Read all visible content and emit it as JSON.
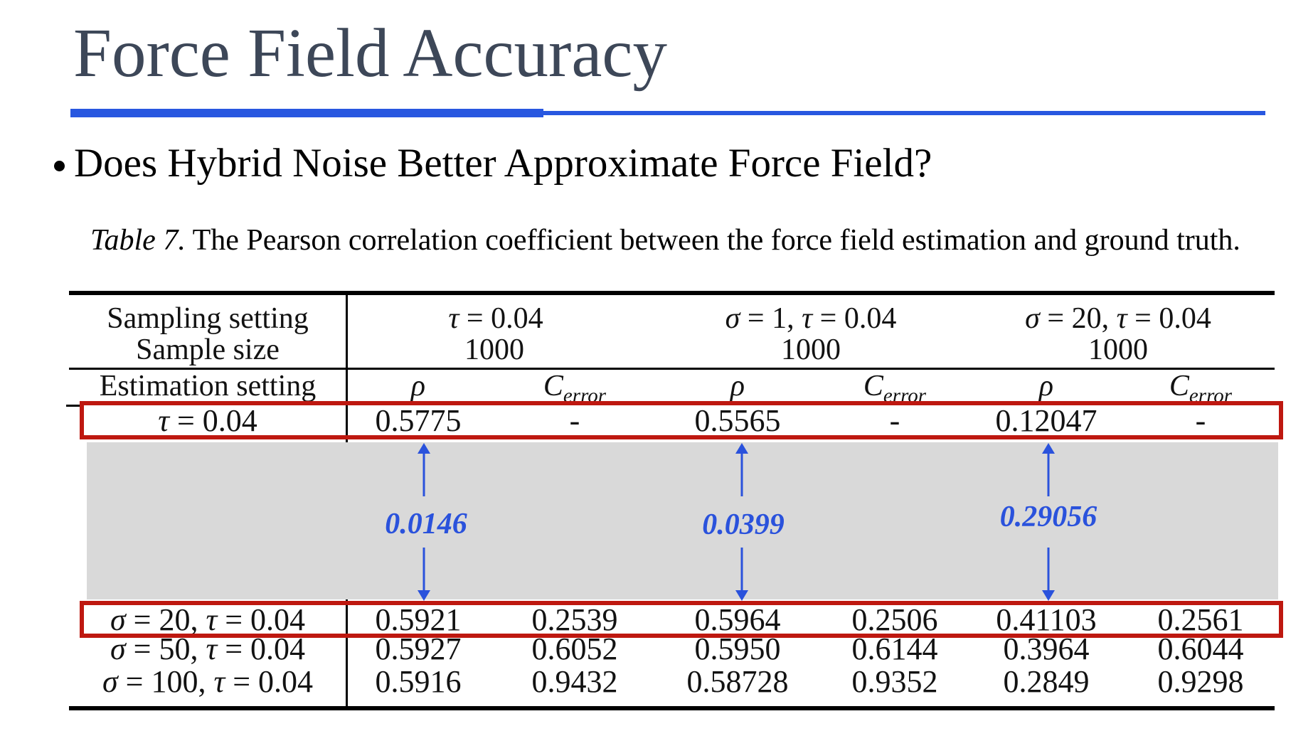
{
  "slide": {
    "title": "Force Field Accuracy",
    "bullet": "Does Hybrid Noise Better Approximate Force Field?",
    "caption_label": "Table 7.",
    "caption_text": "The Pearson correlation coefficient between the force field estimation and ground truth."
  },
  "colors": {
    "accent_blue": "#2857E0",
    "figure_blue": "#2A52DC",
    "highlight_red": "#BE1810",
    "mask_gray": "#D9D9D9",
    "title_color": "#3D4758"
  },
  "chart_data": {
    "type": "table",
    "caption": "Table 7. The Pearson correlation coefficient between the force field estimation and ground truth.",
    "header": {
      "sampling_setting_label": "Sampling setting",
      "sample_size_label": "Sample size",
      "estimation_setting_label": "Estimation setting",
      "metric_rho": "ρ",
      "metric_cerror_main": "C",
      "metric_cerror_sub": "error",
      "groups": [
        {
          "setting": "τ = 0.04",
          "size": "1000"
        },
        {
          "setting": "σ = 1, τ = 0.04",
          "size": "1000"
        },
        {
          "setting": "σ = 20, τ = 0.04",
          "size": "1000"
        }
      ]
    },
    "rows": [
      {
        "label": "τ = 0.04",
        "highlighted": true,
        "values": [
          "0.5775",
          "-",
          "0.5565",
          "-",
          "0.12047",
          "-"
        ]
      },
      {
        "label": "σ = 20, τ = 0.04",
        "highlighted": true,
        "values": [
          "0.5921",
          "0.2539",
          "0.5964",
          "0.2506",
          "0.41103",
          "0.2561"
        ]
      },
      {
        "label": "σ = 50, τ = 0.04",
        "highlighted": false,
        "values": [
          "0.5927",
          "0.6052",
          "0.5950",
          "0.6144",
          "0.3964",
          "0.6044"
        ]
      },
      {
        "label": "σ = 100, τ = 0.04",
        "highlighted": false,
        "values": [
          "0.5916",
          "0.9432",
          "0.58728",
          "0.9352",
          "0.2849",
          "0.9298"
        ]
      }
    ],
    "deltas": [
      "0.0146",
      "0.0399",
      "0.29056"
    ]
  }
}
